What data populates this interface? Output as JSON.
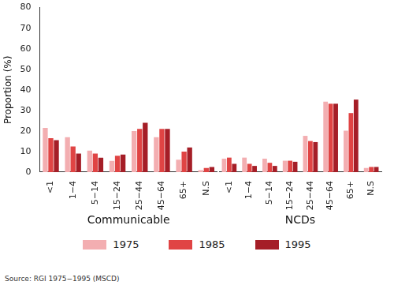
{
  "chart_data": [
    {
      "type": "bar",
      "title": "Communicable",
      "y_label": "Proportion (%)",
      "categories": [
        "<1",
        "1−4",
        "5−14",
        "15−24",
        "25−44",
        "45−64",
        "65+",
        "N.S"
      ],
      "series": [
        {
          "name": "1975",
          "color": "#f3aeb1",
          "values": [
            21.5,
            17,
            10.5,
            5.5,
            20,
            17,
            6,
            1
          ]
        },
        {
          "name": "1985",
          "color": "#e04444",
          "values": [
            16.5,
            12.5,
            9,
            8,
            21,
            21,
            10,
            2
          ]
        },
        {
          "name": "1995",
          "color": "#a51e27",
          "values": [
            15.5,
            9,
            7,
            8.5,
            24,
            21,
            12,
            2.5
          ]
        }
      ],
      "ylim": [
        0,
        80
      ],
      "yticks": [
        0,
        10,
        20,
        30,
        40,
        50,
        60,
        70,
        80
      ],
      "grid": false
    },
    {
      "type": "bar",
      "title": "NCDs",
      "categories": [
        "<1",
        "1−4",
        "5−14",
        "15−24",
        "25−44",
        "45−64",
        "65+",
        "N.S"
      ],
      "series": [
        {
          "name": "1975",
          "color": "#f3aeb1",
          "values": [
            6.5,
            7,
            6.5,
            5.5,
            17.5,
            34,
            20,
            2
          ]
        },
        {
          "name": "1985",
          "color": "#e04444",
          "values": [
            7,
            4,
            4.5,
            5.5,
            15,
            33,
            28.5,
            2.5
          ]
        },
        {
          "name": "1995",
          "color": "#a51e27",
          "values": [
            4,
            3,
            3,
            5,
            14.5,
            33,
            35,
            2.5
          ]
        }
      ],
      "ylim": [
        0,
        80
      ],
      "yticks": [
        0,
        10,
        20,
        30,
        40,
        50,
        60,
        70,
        80
      ],
      "grid": false,
      "tick_labels": "x"
    }
  ],
  "source": "Source: RGI 1975−1995 (MSCD)"
}
